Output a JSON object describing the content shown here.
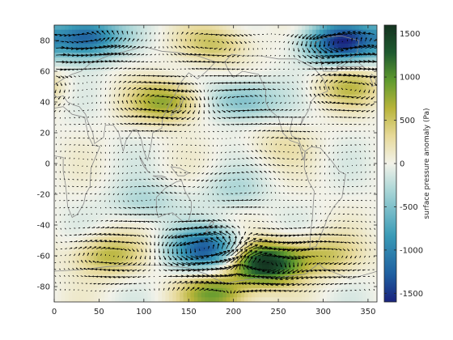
{
  "chart_data": {
    "type": "heatmap",
    "title": "",
    "xlabel": "",
    "ylabel": "",
    "xlim": [
      0,
      360
    ],
    "ylim": [
      -90,
      90
    ],
    "xticks": [
      0,
      50,
      100,
      150,
      200,
      250,
      300,
      350
    ],
    "yticks": [
      -80,
      -60,
      -40,
      -20,
      0,
      20,
      40,
      60,
      80
    ],
    "grid": false,
    "overlay": "vectors (black quiver arrows) and coastlines (grey)",
    "colormap": {
      "name": "delta",
      "stops": [
        "#1a237e",
        "#1f5fa0",
        "#3a9bb7",
        "#a8d5d6",
        "#f2f2e9",
        "#e7d999",
        "#b8b43a",
        "#5f9a2e",
        "#1f5a30",
        "#143320"
      ]
    },
    "colorbar": {
      "label": "surface pressure anomaly (Pa)",
      "range": [
        -1600,
        1600
      ],
      "ticks": [
        1500,
        1000,
        500,
        0,
        -500,
        -1000,
        -1500
      ]
    },
    "features": [
      {
        "lon": 35,
        "lat": 82,
        "value": -1300
      },
      {
        "lon": 320,
        "lat": 79,
        "value": -1500
      },
      {
        "lon": 170,
        "lat": -56,
        "value": -1300
      },
      {
        "lon": 235,
        "lat": -65,
        "value": 1600
      },
      {
        "lon": 125,
        "lat": 40,
        "value": 800
      },
      {
        "lon": 210,
        "lat": 41,
        "value": -600
      },
      {
        "lon": 330,
        "lat": 50,
        "value": 500
      },
      {
        "lon": 60,
        "lat": -60,
        "value": 600
      },
      {
        "lon": 300,
        "lat": -60,
        "value": 500
      },
      {
        "lon": 180,
        "lat": 78,
        "value": 500
      },
      {
        "lon": 100,
        "lat": -25,
        "value": -300
      },
      {
        "lon": 200,
        "lat": -18,
        "value": -250
      },
      {
        "lon": 250,
        "lat": 12,
        "value": 200
      },
      {
        "lon": 180,
        "lat": -85,
        "value": 900
      }
    ]
  }
}
